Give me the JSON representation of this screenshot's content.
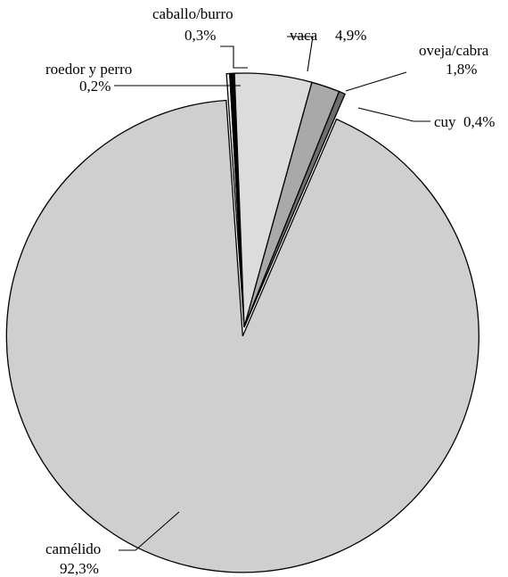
{
  "chart_data": {
    "type": "pie",
    "title": "",
    "slices": [
      {
        "label": "roedor y perro",
        "value": 0.2,
        "value_text": "0,2%",
        "color": "#ffffff"
      },
      {
        "label": "caballo/burro",
        "value": 0.3,
        "value_text": "0,3%",
        "color": "#000000"
      },
      {
        "label": "vaca",
        "value": 4.9,
        "value_text": "4,9%",
        "color": "#dcdcdc"
      },
      {
        "label": "oveja/cabra",
        "value": 1.8,
        "value_text": "1,8%",
        "color": "#a9a9a9"
      },
      {
        "label": "cuy",
        "value": 0.4,
        "value_text": "0,4%",
        "color": "#6e6e6e"
      },
      {
        "label": "camélido",
        "value": 92.3,
        "value_text": "92,3%",
        "color": "#cfcfcf"
      }
    ]
  }
}
